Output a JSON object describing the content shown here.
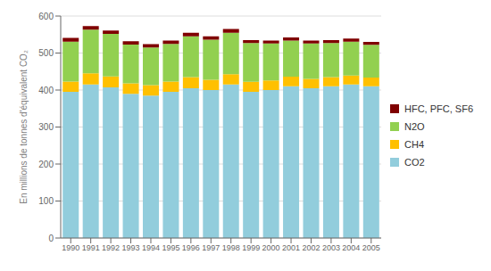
{
  "chart_data": {
    "type": "bar",
    "stacked": true,
    "ylabel": "En millions de tonnes d'équivalent CO₂",
    "categories": [
      "1990",
      "1991",
      "1992",
      "1993",
      "1994",
      "1995",
      "1996",
      "1997",
      "1998",
      "1999",
      "2000",
      "2001",
      "2002",
      "2003",
      "2004",
      "2005"
    ],
    "series": [
      {
        "name": "CO2",
        "color": "#92CDDC",
        "values": [
          395,
          415,
          407,
          390,
          385,
          395,
          405,
          400,
          415,
          395,
          400,
          410,
          405,
          410,
          415,
          410
        ]
      },
      {
        "name": "CH4",
        "color": "#FFC000",
        "values": [
          28,
          30,
          30,
          28,
          28,
          28,
          30,
          28,
          28,
          27,
          26,
          26,
          25,
          25,
          24,
          24
        ]
      },
      {
        "name": "N2O",
        "color": "#92D050",
        "values": [
          108,
          118,
          115,
          105,
          102,
          102,
          110,
          108,
          112,
          105,
          100,
          98,
          96,
          92,
          92,
          88
        ]
      },
      {
        "name": "HFC, PFC, SF6",
        "color": "#7F0000",
        "values": [
          10,
          10,
          9,
          9,
          9,
          9,
          10,
          9,
          10,
          8,
          8,
          8,
          8,
          8,
          8,
          8
        ]
      }
    ],
    "ylim": [
      0,
      600
    ],
    "yticks": [
      0,
      100,
      200,
      300,
      400,
      500,
      600
    ],
    "grid": true,
    "legend": "right"
  }
}
